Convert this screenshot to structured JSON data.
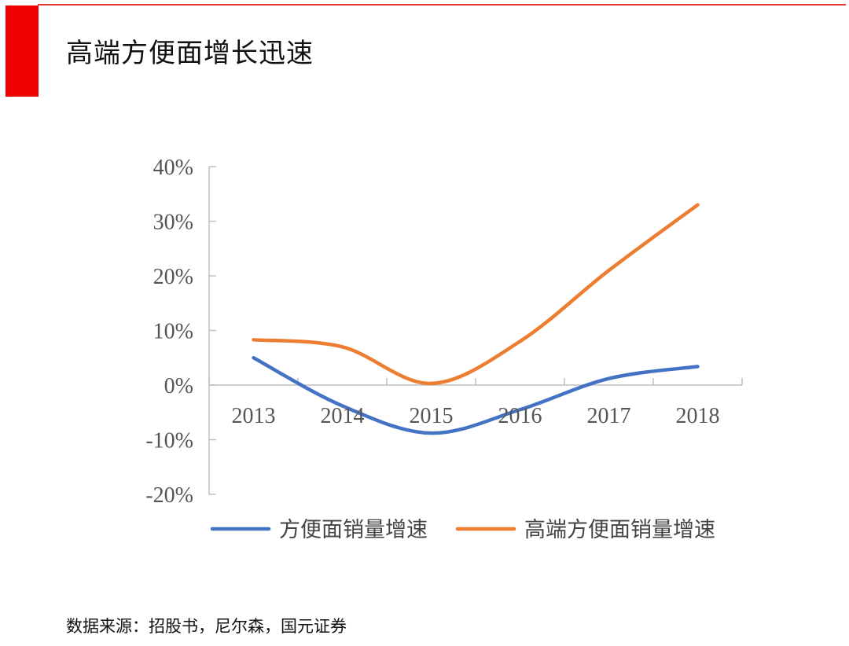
{
  "header": {
    "title": "高端方便面增长迅速",
    "accent_color": "#ee0000",
    "rule_color": "#e53935"
  },
  "footer": {
    "source": "数据来源：招股书，尼尔森，国元证券"
  },
  "chart_data": {
    "type": "line",
    "title": "",
    "xlabel": "",
    "ylabel": "",
    "categories": [
      "2013",
      "2014",
      "2015",
      "2016",
      "2017",
      "2018"
    ],
    "y_ticks": [
      "40%",
      "30%",
      "20%",
      "10%",
      "0%",
      "-10%",
      "-20%"
    ],
    "y_tick_values": [
      40,
      30,
      20,
      10,
      0,
      -10,
      -20
    ],
    "ylim": [
      -20,
      40
    ],
    "grid": false,
    "legend_position": "bottom",
    "series": [
      {
        "name": "方便面销量增速",
        "values": [
          5,
          -3.8,
          -8.8,
          -4.5,
          1.2,
          3.4
        ],
        "color": "#4472c4"
      },
      {
        "name": "高端方便面销量增速",
        "values": [
          8.3,
          7,
          0.3,
          8,
          21,
          33
        ],
        "color": "#ed7d31"
      }
    ]
  }
}
